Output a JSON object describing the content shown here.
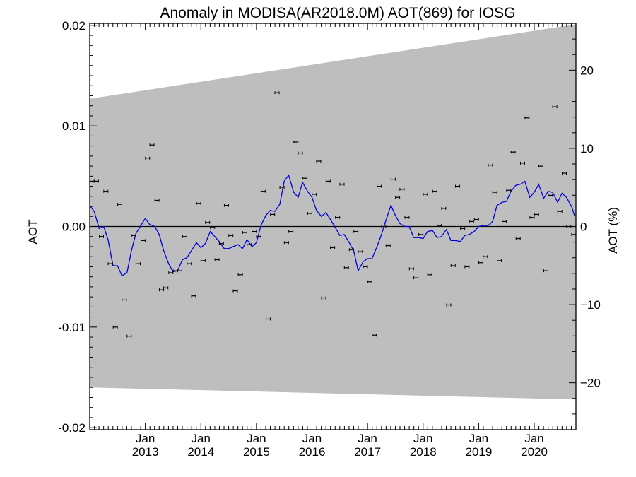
{
  "chart_data": {
    "type": "scatter",
    "title": "Anomaly in MODISA(AR2018.0M) AOT(869) for IOSG",
    "ylabel": "AOT",
    "ylabel_right": "AOT (%)",
    "x_range": [
      2012.0,
      2020.75
    ],
    "ylim": [
      -0.0202,
      0.0202
    ],
    "ylim_right": [
      -26,
      26
    ],
    "x_ticks": [
      {
        "x": 2013.0,
        "top": "Jan",
        "bottom": "2013"
      },
      {
        "x": 2014.0,
        "top": "Jan",
        "bottom": "2014"
      },
      {
        "x": 2015.0,
        "top": "Jan",
        "bottom": "2015"
      },
      {
        "x": 2016.0,
        "top": "Jan",
        "bottom": "2016"
      },
      {
        "x": 2017.0,
        "top": "Jan",
        "bottom": "2017"
      },
      {
        "x": 2018.0,
        "top": "Jan",
        "bottom": "2018"
      },
      {
        "x": 2019.0,
        "top": "Jan",
        "bottom": "2019"
      },
      {
        "x": 2020.0,
        "top": "Jan",
        "bottom": "2020"
      }
    ],
    "y_ticks": [
      {
        "value": 0.02,
        "label": "0.02"
      },
      {
        "value": 0.01,
        "label": "0.01"
      },
      {
        "value": 0.0,
        "label": "0.00"
      },
      {
        "value": -0.01,
        "label": "-0.01"
      },
      {
        "value": -0.02,
        "label": "-0.02"
      }
    ],
    "y_ticks_right": [
      {
        "value": 20,
        "label": "20"
      },
      {
        "value": 10,
        "label": "10"
      },
      {
        "value": 0,
        "label": "0"
      },
      {
        "value": -10,
        "label": "−10"
      },
      {
        "value": -20,
        "label": "−20"
      }
    ],
    "band": {
      "upper": [
        [
          2012.0,
          0.0127
        ],
        [
          2020.75,
          0.0201
        ]
      ],
      "lower": [
        [
          2012.0,
          -0.016
        ],
        [
          2020.75,
          -0.0172
        ]
      ],
      "color": "#bebebe"
    },
    "zero_line": true,
    "series": [
      {
        "kind": "points",
        "color": "#000000",
        "points": [
          [
            2012.04,
            0.0045
          ],
          [
            2012.12,
            0.0045
          ],
          [
            2012.21,
            -0.001
          ],
          [
            2012.29,
            0.0035
          ],
          [
            2012.37,
            -0.0037
          ],
          [
            2012.46,
            -0.01
          ],
          [
            2012.54,
            0.0022
          ],
          [
            2012.62,
            -0.0073
          ],
          [
            2012.71,
            -0.0109
          ],
          [
            2012.79,
            -0.0009
          ],
          [
            2012.87,
            -0.0037
          ],
          [
            2012.96,
            -0.0014
          ],
          [
            2013.04,
            0.0068
          ],
          [
            2013.12,
            0.0081
          ],
          [
            2013.21,
            0.0026
          ],
          [
            2013.29,
            -0.0063
          ],
          [
            2013.37,
            -0.0061
          ],
          [
            2013.46,
            -0.0046
          ],
          [
            2013.54,
            -0.0044
          ],
          [
            2013.62,
            -0.0044
          ],
          [
            2013.71,
            -0.001
          ],
          [
            2013.79,
            -0.0037
          ],
          [
            2013.87,
            -0.0069
          ],
          [
            2013.96,
            0.0023
          ],
          [
            2014.04,
            -0.0034
          ],
          [
            2014.12,
            0.0004
          ],
          [
            2014.21,
            -0.0001
          ],
          [
            2014.29,
            -0.0033
          ],
          [
            2014.37,
            -0.0017
          ],
          [
            2014.46,
            0.0021
          ],
          [
            2014.54,
            -0.0009
          ],
          [
            2014.62,
            -0.0064
          ],
          [
            2014.71,
            -0.0048
          ],
          [
            2014.79,
            -0.0006
          ],
          [
            2014.87,
            -0.0018
          ],
          [
            2014.96,
            -0.0005
          ],
          [
            2015.04,
            -0.001
          ],
          [
            2015.12,
            0.0035
          ],
          [
            2015.21,
            -0.0092
          ],
          [
            2015.29,
            0.0012
          ],
          [
            2015.37,
            0.0133
          ],
          [
            2015.46,
            0.0039
          ],
          [
            2015.54,
            -0.0016
          ],
          [
            2015.62,
            -0.0005
          ],
          [
            2015.71,
            0.0084
          ],
          [
            2015.79,
            0.0073
          ],
          [
            2015.87,
            0.0048
          ],
          [
            2015.96,
            0.0013
          ],
          [
            2016.04,
            0.0032
          ],
          [
            2016.12,
            0.0065
          ],
          [
            2016.21,
            -0.0071
          ],
          [
            2016.29,
            0.0045
          ],
          [
            2016.37,
            -0.0021
          ],
          [
            2016.46,
            0.0009
          ],
          [
            2016.54,
            0.0042
          ],
          [
            2016.62,
            -0.0041
          ],
          [
            2016.71,
            -0.0023
          ],
          [
            2016.79,
            -0.0005
          ],
          [
            2016.87,
            -0.0025
          ],
          [
            2016.96,
            -0.004
          ],
          [
            2017.04,
            -0.0055
          ],
          [
            2017.12,
            -0.0108
          ],
          [
            2017.21,
            0.004
          ],
          [
            2017.29,
            0.0
          ],
          [
            2017.37,
            -0.0019
          ],
          [
            2017.46,
            0.0047
          ],
          [
            2017.54,
            0.0029
          ],
          [
            2017.62,
            0.0037
          ],
          [
            2017.71,
            0.0009
          ],
          [
            2017.79,
            -0.0042
          ],
          [
            2017.87,
            -0.0051
          ],
          [
            2017.96,
            -0.0008
          ],
          [
            2018.04,
            0.0032
          ],
          [
            2018.12,
            -0.0048
          ],
          [
            2018.21,
            0.0035
          ],
          [
            2018.29,
            0.0001
          ],
          [
            2018.37,
            0.0018
          ],
          [
            2018.46,
            -0.0078
          ],
          [
            2018.54,
            -0.0039
          ],
          [
            2018.62,
            0.004
          ],
          [
            2018.71,
            -0.0002
          ],
          [
            2018.79,
            -0.004
          ],
          [
            2018.87,
            0.0005
          ],
          [
            2018.96,
            0.0007
          ],
          [
            2019.04,
            -0.0036
          ],
          [
            2019.12,
            -0.003
          ],
          [
            2019.21,
            0.0061
          ],
          [
            2019.29,
            0.0034
          ],
          [
            2019.37,
            -0.0034
          ],
          [
            2019.46,
            0.0005
          ],
          [
            2019.54,
            0.0036
          ],
          [
            2019.62,
            0.0074
          ],
          [
            2019.71,
            -0.0012
          ],
          [
            2019.79,
            0.0063
          ],
          [
            2019.87,
            0.0108
          ],
          [
            2019.96,
            0.0009
          ],
          [
            2020.04,
            0.0012
          ],
          [
            2020.12,
            0.006
          ],
          [
            2020.21,
            -0.0044
          ],
          [
            2020.29,
            0.0031
          ],
          [
            2020.37,
            0.0119
          ],
          [
            2020.46,
            0.0015
          ],
          [
            2020.54,
            0.0053
          ],
          [
            2020.62,
            0.0
          ],
          [
            2020.71,
            -0.0008
          ]
        ]
      },
      {
        "kind": "line",
        "color": "#0000dd",
        "points": [
          [
            2012.0,
            0.0021
          ],
          [
            2012.08,
            0.0015
          ],
          [
            2012.17,
            -0.0002
          ],
          [
            2012.25,
            0.0
          ],
          [
            2012.33,
            -0.0013
          ],
          [
            2012.42,
            -0.0039
          ],
          [
            2012.5,
            -0.0039
          ],
          [
            2012.58,
            -0.0049
          ],
          [
            2012.67,
            -0.0046
          ],
          [
            2012.75,
            -0.0024
          ],
          [
            2012.83,
            -0.0007
          ],
          [
            2012.92,
            0.0001
          ],
          [
            2013.0,
            0.0008
          ],
          [
            2013.08,
            0.0002
          ],
          [
            2013.17,
            0.0
          ],
          [
            2013.25,
            -0.0008
          ],
          [
            2013.33,
            -0.0024
          ],
          [
            2013.42,
            -0.0037
          ],
          [
            2013.5,
            -0.0045
          ],
          [
            2013.58,
            -0.0044
          ],
          [
            2013.67,
            -0.0033
          ],
          [
            2013.75,
            -0.0031
          ],
          [
            2013.83,
            -0.0024
          ],
          [
            2013.92,
            -0.0016
          ],
          [
            2014.0,
            -0.0021
          ],
          [
            2014.08,
            -0.0017
          ],
          [
            2014.17,
            -0.0005
          ],
          [
            2014.25,
            -0.001
          ],
          [
            2014.33,
            -0.0015
          ],
          [
            2014.42,
            -0.0022
          ],
          [
            2014.5,
            -0.0022
          ],
          [
            2014.58,
            -0.002
          ],
          [
            2014.67,
            -0.0018
          ],
          [
            2014.75,
            -0.0022
          ],
          [
            2014.83,
            -0.0013
          ],
          [
            2014.92,
            -0.002
          ],
          [
            2015.0,
            -0.0016
          ],
          [
            2015.08,
            0.0001
          ],
          [
            2015.17,
            0.0011
          ],
          [
            2015.25,
            0.0016
          ],
          [
            2015.33,
            0.0015
          ],
          [
            2015.42,
            0.0022
          ],
          [
            2015.5,
            0.0045
          ],
          [
            2015.58,
            0.0051
          ],
          [
            2015.67,
            0.0034
          ],
          [
            2015.75,
            0.0029
          ],
          [
            2015.83,
            0.0044
          ],
          [
            2015.92,
            0.0035
          ],
          [
            2016.0,
            0.0029
          ],
          [
            2016.08,
            0.0016
          ],
          [
            2016.17,
            0.001
          ],
          [
            2016.25,
            0.0014
          ],
          [
            2016.33,
            0.0007
          ],
          [
            2016.42,
            -0.0001
          ],
          [
            2016.5,
            -0.0009
          ],
          [
            2016.58,
            -0.0008
          ],
          [
            2016.67,
            -0.0016
          ],
          [
            2016.75,
            -0.0024
          ],
          [
            2016.83,
            -0.0044
          ],
          [
            2016.92,
            -0.0035
          ],
          [
            2017.0,
            -0.0032
          ],
          [
            2017.08,
            -0.0032
          ],
          [
            2017.17,
            -0.002
          ],
          [
            2017.25,
            -0.0008
          ],
          [
            2017.33,
            0.0006
          ],
          [
            2017.42,
            0.0021
          ],
          [
            2017.5,
            0.0011
          ],
          [
            2017.58,
            0.0003
          ],
          [
            2017.67,
            0.0
          ],
          [
            2017.75,
            0.0
          ],
          [
            2017.83,
            -0.0011
          ],
          [
            2017.92,
            -0.0011
          ],
          [
            2018.0,
            -0.0012
          ],
          [
            2018.08,
            -0.0005
          ],
          [
            2018.17,
            -0.0004
          ],
          [
            2018.25,
            -0.0011
          ],
          [
            2018.33,
            -0.001
          ],
          [
            2018.42,
            -0.0003
          ],
          [
            2018.5,
            -0.0014
          ],
          [
            2018.58,
            -0.0014
          ],
          [
            2018.67,
            -0.0015
          ],
          [
            2018.75,
            -0.0009
          ],
          [
            2018.83,
            -0.0008
          ],
          [
            2018.92,
            -0.0005
          ],
          [
            2019.0,
            0.0
          ],
          [
            2019.08,
            0.0001
          ],
          [
            2019.17,
            0.0001
          ],
          [
            2019.25,
            0.0005
          ],
          [
            2019.33,
            0.0021
          ],
          [
            2019.42,
            0.0024
          ],
          [
            2019.5,
            0.0025
          ],
          [
            2019.58,
            0.0035
          ],
          [
            2019.67,
            0.0041
          ],
          [
            2019.75,
            0.0042
          ],
          [
            2019.83,
            0.0045
          ],
          [
            2019.92,
            0.0029
          ],
          [
            2020.0,
            0.0034
          ],
          [
            2020.08,
            0.0042
          ],
          [
            2020.17,
            0.0028
          ],
          [
            2020.25,
            0.0035
          ],
          [
            2020.33,
            0.0034
          ],
          [
            2020.42,
            0.0024
          ],
          [
            2020.5,
            0.0033
          ],
          [
            2020.58,
            0.0029
          ],
          [
            2020.67,
            0.002
          ],
          [
            2020.73,
            0.001
          ]
        ]
      }
    ]
  }
}
